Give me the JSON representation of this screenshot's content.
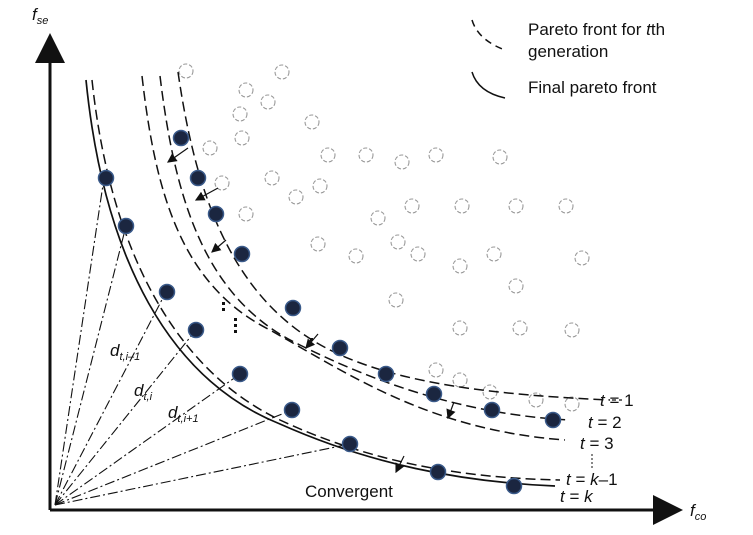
{
  "axes": {
    "x_label": {
      "main": "f",
      "sub": "co"
    },
    "y_label": {
      "main": "f",
      "sub": "se"
    }
  },
  "legend": {
    "dashed_label_line1_pre": "Pareto front for ",
    "dashed_label_line1_var": "t",
    "dashed_label_line1_post": "th",
    "dashed_label_line2": "generation",
    "solid_label": "Final pareto front"
  },
  "fronts": {
    "t1": {
      "pre": "t",
      "post": " = 1"
    },
    "t2": {
      "pre": "t",
      "post": " = 2"
    },
    "t3": {
      "pre": "t",
      "post": " = 3"
    },
    "tk1_a": "t",
    "tk1_b": " = ",
    "tk1_c": "k",
    "tk1_d": "–1",
    "tk_a": "t",
    "tk_b": " = ",
    "tk_c": "k"
  },
  "distances": [
    {
      "main": "d",
      "sub": "t,i–1"
    },
    {
      "main": "d",
      "sub": "t,i"
    },
    {
      "main": "d",
      "sub": "t,i+1"
    }
  ],
  "convergent_label": "Convergent",
  "colors": {
    "filled_point": "#1b2640",
    "filled_point_edge": "#3a5a8a",
    "open_point": "#999999",
    "line": "#111111"
  }
}
